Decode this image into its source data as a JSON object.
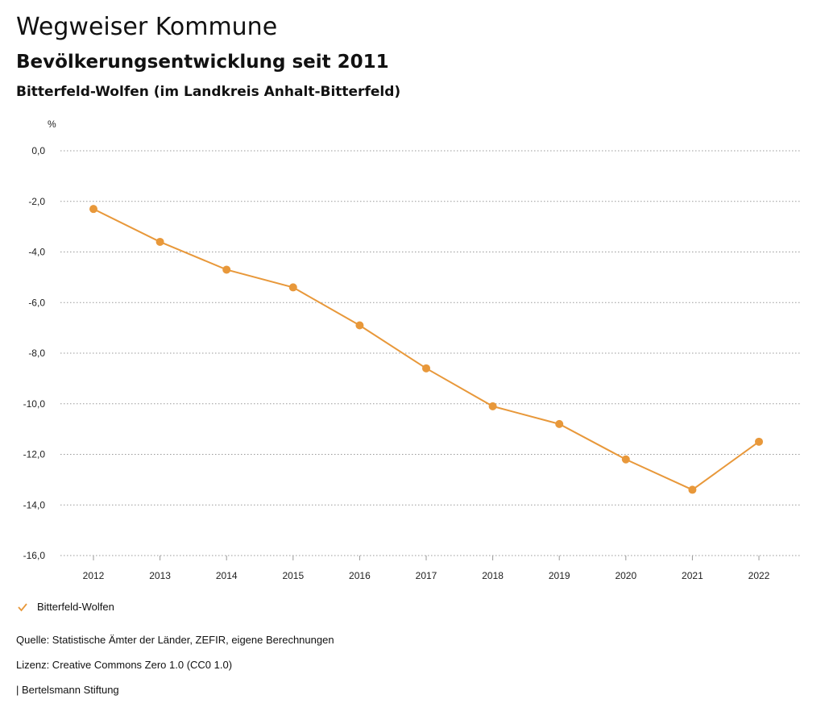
{
  "header": {
    "title": "Wegweiser Kommune",
    "subtitle": "Bevölkerungsentwicklung seit 2011",
    "region": "Bitterfeld-Wolfen (im Landkreis Anhalt-Bitterfeld)"
  },
  "chart_data": {
    "type": "line",
    "title": "Bevölkerungsentwicklung seit 2011",
    "ylabel": "%",
    "xlabel": "",
    "x": [
      "2012",
      "2013",
      "2014",
      "2015",
      "2016",
      "2017",
      "2018",
      "2019",
      "2020",
      "2021",
      "2022"
    ],
    "ylim": [
      -16.0,
      0.0
    ],
    "yticks": [
      "0,0",
      "-2,0",
      "-4,0",
      "-6,0",
      "-8,0",
      "-10,0",
      "-12,0",
      "-14,0",
      "-16,0"
    ],
    "ytick_values": [
      0,
      -2,
      -4,
      -6,
      -8,
      -10,
      -12,
      -14,
      -16
    ],
    "grid": true,
    "legend_position": "bottom-left",
    "series": [
      {
        "name": "Bitterfeld-Wolfen",
        "color": "#E8983A",
        "values": [
          -2.3,
          -3.6,
          -4.7,
          -5.4,
          -6.9,
          -8.6,
          -10.1,
          -10.8,
          -12.2,
          -13.4,
          -11.5
        ]
      }
    ]
  },
  "legend": {
    "label": "Bitterfeld-Wolfen"
  },
  "footer": {
    "source": "Quelle: Statistische Ämter der Länder, ZEFIR, eigene Berechnungen",
    "license": "Lizenz: Creative Commons Zero 1.0 (CC0 1.0)",
    "publisher": "| Bertelsmann Stiftung"
  }
}
